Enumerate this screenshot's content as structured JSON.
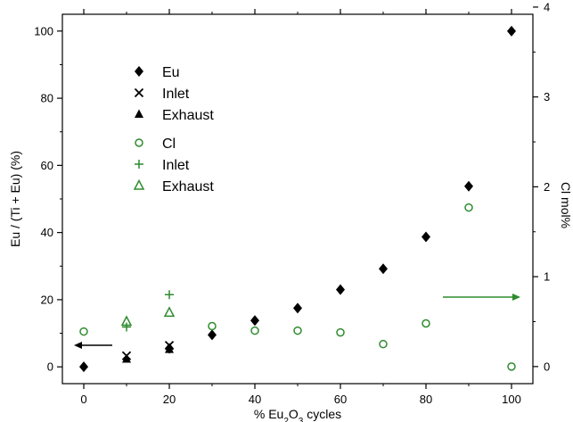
{
  "chart_data": {
    "type": "scatter",
    "xlabel": "% Eu2O3 cycles",
    "xlabel_parts": {
      "pre": "% Eu",
      "sub1": "2",
      "mid": "O",
      "sub2": "3",
      "post": " cycles"
    },
    "ylabel": "Eu / (Ti + Eu) (%)",
    "y2label": "Cl mol%",
    "xlim": [
      -5,
      105
    ],
    "ylim": [
      -5,
      105
    ],
    "y2lim": [
      -0.19,
      3.92
    ],
    "xticks": [
      0,
      20,
      40,
      60,
      80,
      100
    ],
    "yticks": [
      0,
      20,
      40,
      60,
      80,
      100
    ],
    "y2ticks": [
      0,
      1,
      2,
      3,
      4
    ],
    "colors": {
      "eu": "#000000",
      "cl": "#2e8b2e"
    },
    "legend": {
      "position": "upper-left",
      "entries": [
        {
          "label": "Eu",
          "marker": "diamond-filled",
          "color": "#000000"
        },
        {
          "label": "Inlet",
          "marker": "x",
          "color": "#000000"
        },
        {
          "label": "Exhaust",
          "marker": "triangle-filled",
          "color": "#000000"
        },
        {
          "label": "Cl",
          "marker": "circle-open",
          "color": "#2e8b2e"
        },
        {
          "label": "Inlet",
          "marker": "plus",
          "color": "#2e8b2e"
        },
        {
          "label": "Exhaust",
          "marker": "triangle-open",
          "color": "#2e8b2e"
        }
      ]
    },
    "series": [
      {
        "name": "Eu",
        "axis": "left",
        "marker": "diamond-filled",
        "color": "#000000",
        "x": [
          0,
          20,
          30,
          40,
          50,
          60,
          70,
          80,
          90,
          100
        ],
        "y": [
          0,
          5.5,
          9.5,
          13.8,
          17.5,
          23,
          29.2,
          38.7,
          53.8,
          100
        ]
      },
      {
        "name": "Inlet",
        "axis": "left",
        "marker": "x",
        "color": "#000000",
        "x": [
          10,
          20
        ],
        "y": [
          3.3,
          6.4
        ]
      },
      {
        "name": "Exhaust",
        "axis": "left",
        "marker": "triangle-filled",
        "color": "#000000",
        "x": [
          10,
          20
        ],
        "y": [
          2.3,
          5.2
        ]
      },
      {
        "name": "Cl",
        "axis": "right",
        "marker": "circle-open",
        "color": "#2e8b2e",
        "x": [
          0,
          30,
          40,
          50,
          60,
          70,
          80,
          90,
          100
        ],
        "y": [
          0.39,
          0.45,
          0.4,
          0.4,
          0.38,
          0.25,
          0.48,
          1.77,
          0.0
        ]
      },
      {
        "name": "Inlet",
        "axis": "right",
        "marker": "plus",
        "color": "#2e8b2e",
        "x": [
          10,
          20
        ],
        "y": [
          0.44,
          0.8
        ]
      },
      {
        "name": "Exhaust",
        "axis": "right",
        "marker": "triangle-open",
        "color": "#2e8b2e",
        "x": [
          10,
          20
        ],
        "y": [
          0.5,
          0.6
        ]
      }
    ],
    "annotations": [
      {
        "type": "arrow",
        "direction": "left",
        "points_to": "left-axis",
        "color": "#000000"
      },
      {
        "type": "arrow",
        "direction": "right",
        "points_to": "right-axis",
        "color": "#2e8b2e"
      }
    ],
    "grid": false
  }
}
